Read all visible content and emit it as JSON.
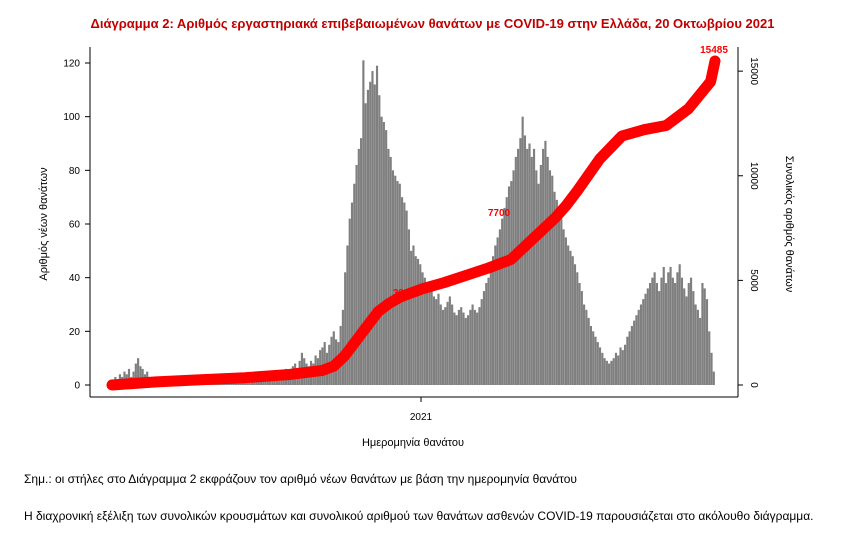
{
  "note_1": "Σημ.: οι στήλες στο Διάγραμμα 2 εκφράζουν τον αριθμό νέων θανάτων με βάση την ημερομηνία θανάτου",
  "note_2": "Η διαχρονική εξέλιξη των συνολικών κρουσμάτων και συνολικού αριθμού των θανάτων ασθενών COVID-19 παρουσιάζεται στο ακόλουθο διάγραμμα.",
  "chart_data": {
    "type": "bar",
    "title": "Διάγραμμα 2: Αριθμός εργαστηριακά επιβεβαιωμένων θανάτων με COVID-19 στην Ελλάδα, 20 Οκτωβρίου 2021",
    "xlabel": "Ημερομηνία θανάτου",
    "ylabel_left": "Αριθμός νέων θανάτων",
    "ylabel_right": "Συνολικός αριθμός θανάτων",
    "x_tick_labels": [
      "2021"
    ],
    "y_left_ticks": [
      0,
      20,
      40,
      60,
      80,
      100,
      120
    ],
    "y_left_range": [
      0,
      120
    ],
    "y_right_ticks": [
      0,
      5000,
      10000,
      15000
    ],
    "y_right_range": [
      0,
      15485
    ],
    "colors": {
      "bars": "#7f7f7f",
      "cumulative": "#ff0000",
      "title": "#c00000"
    },
    "series": [
      {
        "name": "new_deaths",
        "values": [
          2,
          3,
          2,
          4,
          3,
          5,
          4,
          6,
          3,
          5,
          8,
          10,
          7,
          6,
          4,
          5,
          3,
          2,
          3,
          2,
          2,
          1,
          2,
          1,
          2,
          1,
          1,
          2,
          1,
          1,
          2,
          1,
          2,
          1,
          1,
          2,
          1,
          2,
          1,
          1,
          2,
          1,
          2,
          1,
          2,
          1,
          1,
          2,
          1,
          2,
          1,
          2,
          1,
          2,
          3,
          2,
          1,
          2,
          3,
          2,
          2,
          3,
          2,
          1,
          3,
          2,
          3,
          4,
          3,
          2,
          4,
          3,
          2,
          5,
          4,
          3,
          6,
          5,
          4,
          7,
          8,
          6,
          9,
          12,
          10,
          8,
          7,
          9,
          8,
          11,
          10,
          13,
          14,
          16,
          12,
          15,
          18,
          20,
          17,
          16,
          22,
          28,
          42,
          52,
          62,
          68,
          75,
          82,
          88,
          92,
          121,
          105,
          110,
          113,
          117,
          112,
          119,
          108,
          100,
          98,
          95,
          88,
          85,
          80,
          78,
          76,
          75,
          70,
          68,
          65,
          58,
          50,
          52,
          48,
          47,
          45,
          42,
          40,
          38,
          36,
          35,
          33,
          32,
          34,
          30,
          28,
          29,
          31,
          33,
          30,
          27,
          26,
          28,
          29,
          27,
          25,
          26,
          28,
          30,
          28,
          27,
          29,
          32,
          35,
          38,
          40,
          44,
          48,
          52,
          55,
          58,
          62,
          66,
          70,
          74,
          76,
          80,
          85,
          88,
          92,
          100,
          93,
          88,
          90,
          85,
          88,
          80,
          75,
          82,
          88,
          91,
          85,
          80,
          78,
          72,
          69,
          66,
          62,
          58,
          55,
          52,
          50,
          48,
          45,
          42,
          38,
          35,
          30,
          28,
          25,
          22,
          20,
          18,
          16,
          14,
          12,
          10,
          9,
          8,
          9,
          10,
          12,
          11,
          14,
          13,
          15,
          18,
          20,
          22,
          24,
          26,
          28,
          30,
          32,
          34,
          36,
          38,
          40,
          42,
          38,
          35,
          40,
          44,
          38,
          42,
          44,
          40,
          38,
          42,
          45,
          40,
          36,
          33,
          38,
          40,
          35,
          30,
          28,
          25,
          38,
          36,
          32,
          20,
          12,
          5
        ]
      },
      {
        "name": "cumulative_deaths",
        "x": [
          0,
          20,
          40,
          60,
          80,
          95,
          100,
          105,
          110,
          115,
          120,
          125,
          130,
          135,
          140,
          145,
          150,
          160,
          170,
          180,
          185,
          190,
          195,
          200,
          205,
          210,
          220,
          230,
          240,
          250,
          260,
          270,
          272
        ],
        "values": [
          0,
          150,
          250,
          350,
          500,
          700,
          900,
          1400,
          2100,
          2800,
          3500,
          3900,
          4200,
          4400,
          4600,
          4750,
          4900,
          5250,
          5600,
          6000,
          6500,
          7000,
          7500,
          8000,
          8600,
          9300,
          10800,
          11900,
          12200,
          12400,
          13200,
          14500,
          15485
        ]
      }
    ],
    "annotations": [
      "3900",
      "7700",
      "15485"
    ]
  }
}
